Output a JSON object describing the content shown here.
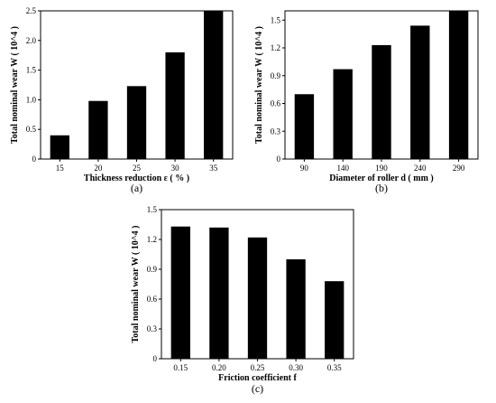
{
  "chart_data": [
    {
      "type": "bar",
      "panel_label": "(a)",
      "categories": [
        "15",
        "20",
        "25",
        "30",
        "35"
      ],
      "values": [
        0.4,
        0.98,
        1.23,
        1.8,
        2.5
      ],
      "xlabel": "Thickness reduction ε ( % )",
      "ylabel": "Total nominal wear W ( 10^4 )",
      "ylim": [
        0,
        2.5
      ],
      "yticks": [
        "0",
        "0.5",
        "1.0",
        "1.5",
        "2.0",
        "2.5"
      ],
      "grid": false,
      "bar_color": "#000000"
    },
    {
      "type": "bar",
      "panel_label": "(b)",
      "categories": [
        "90",
        "140",
        "190",
        "240",
        "290"
      ],
      "values": [
        0.7,
        0.97,
        1.23,
        1.44,
        1.6
      ],
      "xlabel": "Diameter of roller d ( mm )",
      "ylabel": "Total nominal wear W ( 10^4 )",
      "ylim": [
        0,
        1.6
      ],
      "yticks": [
        "0",
        "0.3",
        "0.6",
        "0.9",
        "1.2",
        "1.5"
      ],
      "grid": false,
      "bar_color": "#000000"
    },
    {
      "type": "bar",
      "panel_label": "(c)",
      "categories": [
        "0.15",
        "0.20",
        "0.25",
        "0.30",
        "0.35"
      ],
      "values": [
        1.33,
        1.32,
        1.22,
        1.0,
        0.78
      ],
      "xlabel": "Friction coefficient f",
      "ylabel": "Total nominal wear W ( 10^4 )",
      "ylim": [
        0,
        1.5
      ],
      "yticks": [
        "0",
        "0.3",
        "0.6",
        "0.9",
        "1.2",
        "1.5"
      ],
      "grid": false,
      "bar_color": "#000000"
    }
  ]
}
